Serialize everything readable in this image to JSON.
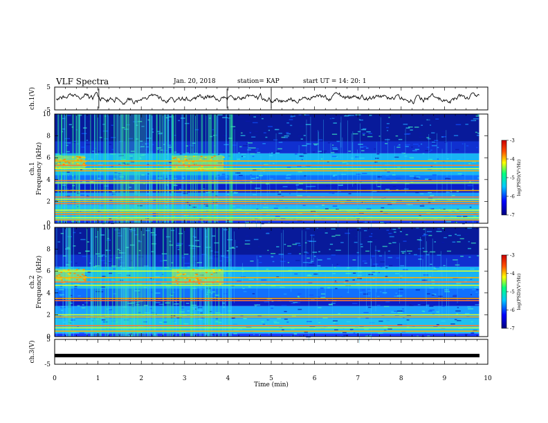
{
  "header": {
    "title": "VLF Spectra",
    "date": "Jan. 20, 2018",
    "station": "station= KAP",
    "start": "start  UT =   14: 20: 1"
  },
  "colors": {
    "waveform": "#000000",
    "background": "#ffffff"
  },
  "chart_data": [
    {
      "type": "line",
      "panel": "ch1-waveform",
      "ylabel": "ch.1(V)",
      "ylim": [
        -5,
        5
      ],
      "yticks": [
        "5",
        "-5"
      ],
      "xlim": [
        0,
        10
      ],
      "x_end": 9.8,
      "series": [
        {
          "values_description_only": "noisy waveform around 0 V, amplitude about ±2 V"
        }
      ]
    },
    {
      "type": "heatmap",
      "panel": "ch1-spectrogram",
      "ylabel": "ch.1\nFrequency (kHz)",
      "ylim": [
        0,
        10
      ],
      "yticks": [
        "0",
        "2",
        "4",
        "6",
        "8",
        "10"
      ],
      "xlim": [
        0,
        10
      ],
      "x_end": 9.8,
      "lines_khz": [
        0.3,
        0.5,
        0.8,
        1.0,
        1.2,
        1.8,
        2.0,
        2.2,
        2.4,
        3.0,
        3.7,
        3.9,
        4.8,
        5.0,
        5.3,
        5.7
      ],
      "bursts_min": [
        [
          0.0,
          0.7,
          5.0,
          6.2
        ],
        [
          2.7,
          3.9,
          4.8,
          6.2
        ]
      ],
      "colorbar": {
        "label": "log(PSD)(V²/Hz)",
        "range": [
          -7,
          -3
        ],
        "ticks": [
          "-3",
          "-4",
          "-5",
          "-6",
          "-7"
        ]
      }
    },
    {
      "type": "heatmap",
      "panel": "ch2-spectrogram",
      "ylabel": "ch.2\nFrequency (kHz)",
      "ylim": [
        0,
        10
      ],
      "yticks": [
        "0",
        "2",
        "4",
        "6",
        "8",
        "10"
      ],
      "xlim": [
        0,
        10
      ],
      "x_end": 9.8,
      "lines_khz": [
        0.5,
        0.8,
        1.0,
        1.8,
        2.0,
        3.3,
        3.5,
        4.7,
        5.0,
        5.4,
        6.0
      ],
      "bursts_min": [
        [
          0.0,
          0.7,
          5.0,
          6.2
        ],
        [
          2.7,
          3.9,
          4.8,
          6.2
        ]
      ],
      "colorbar": {
        "label": "log(PSD)(V²/Hz)",
        "range": [
          -7,
          -3
        ],
        "ticks": [
          "-3",
          "-4",
          "-5",
          "-6",
          "-7"
        ]
      }
    },
    {
      "type": "line",
      "panel": "ch3-waveform",
      "ylabel": "ch.3(V)",
      "ylim": [
        -5,
        5
      ],
      "yticks": [
        "5",
        "-5"
      ],
      "xlim": [
        0,
        10
      ],
      "x_end": 9.8,
      "constant_value": -1.5
    }
  ],
  "xaxis": {
    "label": "Time (min)",
    "ticks": [
      "0",
      "1",
      "2",
      "3",
      "4",
      "5",
      "6",
      "7",
      "8",
      "9",
      "10"
    ]
  }
}
